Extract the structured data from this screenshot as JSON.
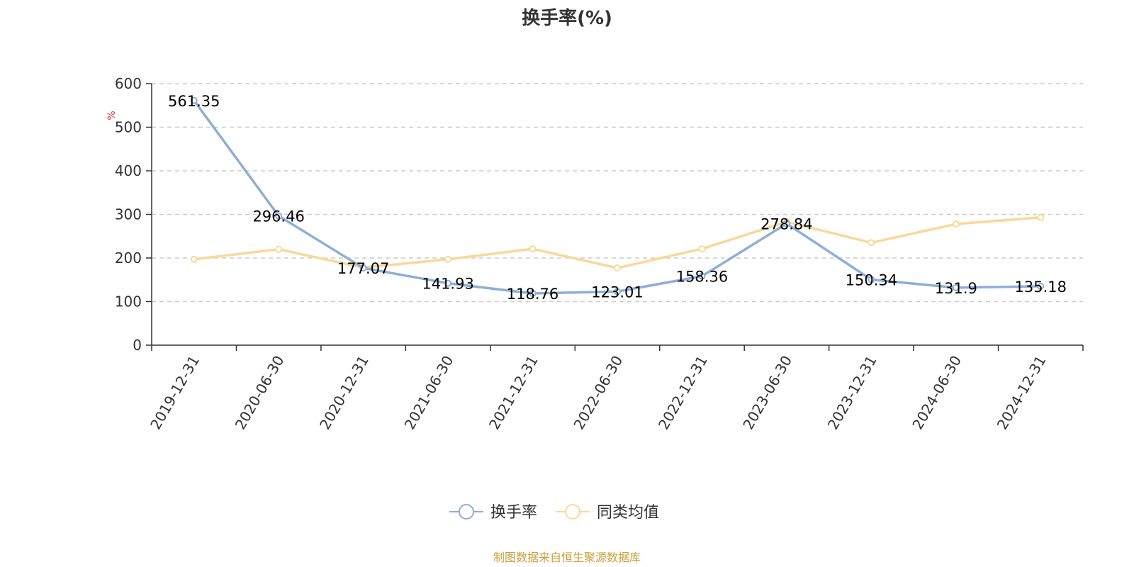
{
  "chart_data": {
    "type": "line",
    "title": "换手率(%)",
    "ylabel": "%",
    "categories": [
      "2019-12-31",
      "2020-06-30",
      "2020-12-31",
      "2021-06-30",
      "2021-12-31",
      "2022-06-30",
      "2022-12-31",
      "2023-06-30",
      "2023-12-31",
      "2024-06-30",
      "2024-12-31"
    ],
    "yticks": [
      "0",
      "100",
      "200",
      "300",
      "400",
      "500",
      "600"
    ],
    "ylim": [
      0,
      600
    ],
    "grid": true,
    "legend_position": "bottom-center",
    "series": [
      {
        "name": "换手率",
        "color": "#8eaed8",
        "values": [
          561.35,
          296.46,
          177.07,
          141.93,
          118.76,
          123.01,
          158.36,
          278.84,
          150.34,
          131.9,
          135.18
        ],
        "labels": [
          "561.35",
          "296.46",
          "177.07",
          "141.93",
          "118.76",
          "123.01",
          "158.36",
          "278.84",
          "150.34",
          "131.9",
          "135.18"
        ]
      },
      {
        "name": "同类均值",
        "color": "#f9d899",
        "values": [
          197,
          220,
          178,
          197,
          221,
          177,
          221,
          283,
          235,
          278,
          293
        ]
      }
    ]
  },
  "source_text": "制图数据来自恒生聚源数据库",
  "colors": {
    "axis": "#333333",
    "grid": "#cccccc",
    "unit_label": "#e03030",
    "source_text": "#c8a040"
  }
}
